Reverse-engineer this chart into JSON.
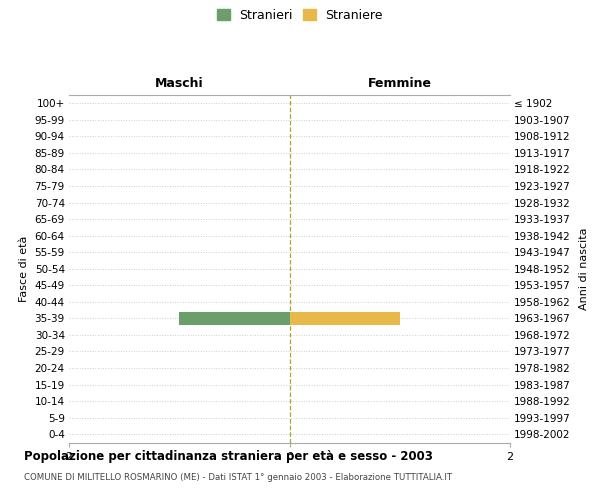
{
  "age_groups": [
    "0-4",
    "5-9",
    "10-14",
    "15-19",
    "20-24",
    "25-29",
    "30-34",
    "35-39",
    "40-44",
    "45-49",
    "50-54",
    "55-59",
    "60-64",
    "65-69",
    "70-74",
    "75-79",
    "80-84",
    "85-89",
    "90-94",
    "95-99",
    "100+"
  ],
  "birth_years": [
    "1998-2002",
    "1993-1997",
    "1988-1992",
    "1983-1987",
    "1978-1982",
    "1973-1977",
    "1968-1972",
    "1963-1967",
    "1958-1962",
    "1953-1957",
    "1948-1952",
    "1943-1947",
    "1938-1942",
    "1933-1937",
    "1928-1932",
    "1923-1927",
    "1918-1922",
    "1913-1917",
    "1908-1912",
    "1903-1907",
    "≤ 1902"
  ],
  "males": [
    0,
    0,
    0,
    0,
    0,
    0,
    0,
    1,
    0,
    0,
    0,
    0,
    0,
    0,
    0,
    0,
    0,
    0,
    0,
    0,
    0
  ],
  "females": [
    0,
    0,
    0,
    0,
    0,
    0,
    0,
    1,
    0,
    0,
    0,
    0,
    0,
    0,
    0,
    0,
    0,
    0,
    0,
    0,
    0
  ],
  "male_color": "#6b9e6b",
  "female_color": "#e8b84b",
  "xlim": 2,
  "title": "Popolazione per cittadinanza straniera per età e sesso - 2003",
  "subtitle": "COMUNE DI MILITELLO ROSMARINO (ME) - Dati ISTAT 1° gennaio 2003 - Elaborazione TUTTITALIA.IT",
  "ylabel_left": "Fasce di età",
  "ylabel_right": "Anni di nascita",
  "xlabel_left": "Maschi",
  "xlabel_right": "Femmine",
  "legend_male": "Stranieri",
  "legend_female": "Straniere",
  "background_color": "#ffffff",
  "grid_color": "#cccccc",
  "bar_height": 0.75
}
